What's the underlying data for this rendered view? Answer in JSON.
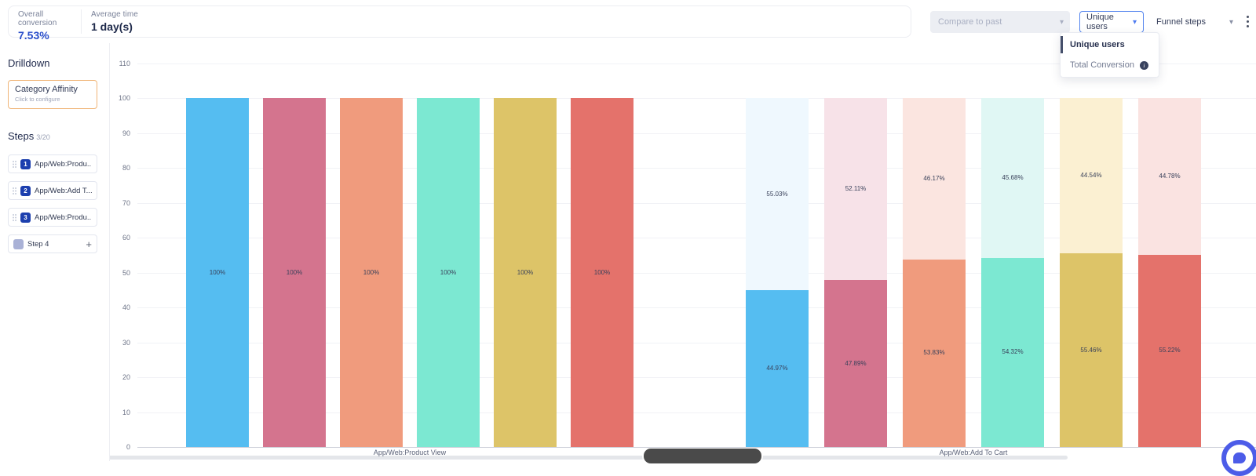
{
  "header": {
    "metrics": [
      {
        "label": "Overall conversion",
        "value": "7.53%"
      },
      {
        "label": "Average time",
        "value": "1 day(s)"
      }
    ],
    "compare_select": {
      "label": "Compare to past",
      "disabled": true
    },
    "measure_select": {
      "value": "Unique users"
    },
    "funnel_select": {
      "value": "Funnel steps"
    },
    "measure_menu": {
      "items": [
        {
          "label": "Unique users",
          "selected": true
        },
        {
          "label": "Total Conversion",
          "selected": false,
          "has_info_icon": true
        }
      ]
    },
    "icons": {
      "chevron": "▾",
      "kebab": "more-options-icon",
      "info": "i"
    },
    "accent_color": "#5585EE"
  },
  "sidebar": {
    "drilldown_title": "Drilldown",
    "drilldown_card": {
      "title": "Category Affinity",
      "subtitle": "Click to configure",
      "border_color": "#F0B577"
    },
    "steps_title": "Steps",
    "steps_count": "3/20",
    "steps": [
      {
        "number": "1",
        "label": "App/Web:Produ..."
      },
      {
        "number": "2",
        "label": "App/Web:Add T..."
      },
      {
        "number": "3",
        "label": "App/Web:Produ..."
      }
    ],
    "add_step": {
      "label": "Step 4",
      "plus": "+"
    }
  },
  "chart_data": {
    "type": "bar",
    "stacked": true,
    "grid": true,
    "legend": "none",
    "y_axis": {
      "min": 0,
      "max": 110,
      "tick_step": 10
    },
    "categories": [
      "App/Web:Product View",
      "App/Web:Add To Cart"
    ],
    "series_colors": [
      "#55BDF1",
      "#D4748E",
      "#F09B7D",
      "#7CE8D2",
      "#DDC468",
      "#E4726B"
    ],
    "groups": [
      {
        "category": "App/Web:Product View",
        "bars": [
          {
            "color": "#55BDF1",
            "light": "#EFF8FE",
            "converted": 100,
            "converted_label": "100%",
            "dropped": 0,
            "dropped_label": ""
          },
          {
            "color": "#D4748E",
            "light": "#F7E2E8",
            "converted": 100,
            "converted_label": "100%",
            "dropped": 0,
            "dropped_label": ""
          },
          {
            "color": "#F09B7D",
            "light": "#FBE5E0",
            "converted": 100,
            "converted_label": "100%",
            "dropped": 0,
            "dropped_label": ""
          },
          {
            "color": "#7CE8D2",
            "light": "#E0F7F4",
            "converted": 100,
            "converted_label": "100%",
            "dropped": 0,
            "dropped_label": ""
          },
          {
            "color": "#DDC468",
            "light": "#FBF0D2",
            "converted": 100,
            "converted_label": "100%",
            "dropped": 0,
            "dropped_label": ""
          },
          {
            "color": "#E4726B",
            "light": "#FAE3E1",
            "converted": 100,
            "converted_label": "100%",
            "dropped": 0,
            "dropped_label": ""
          }
        ]
      },
      {
        "category": "App/Web:Add To Cart",
        "bars": [
          {
            "color": "#55BDF1",
            "light": "#EFF8FE",
            "converted": 44.97,
            "converted_label": "44.97%",
            "dropped": 55.03,
            "dropped_label": "55.03%"
          },
          {
            "color": "#D4748E",
            "light": "#F7E2E8",
            "converted": 47.89,
            "converted_label": "47.89%",
            "dropped": 52.11,
            "dropped_label": "52.11%"
          },
          {
            "color": "#F09B7D",
            "light": "#FBE5E0",
            "converted": 53.83,
            "converted_label": "53.83%",
            "dropped": 46.17,
            "dropped_label": "46.17%"
          },
          {
            "color": "#7CE8D2",
            "light": "#E0F7F4",
            "converted": 54.32,
            "converted_label": "54.32%",
            "dropped": 45.68,
            "dropped_label": "45.68%"
          },
          {
            "color": "#DDC468",
            "light": "#FBF0D2",
            "converted": 55.46,
            "converted_label": "55.46%",
            "dropped": 44.54,
            "dropped_label": "44.54%"
          },
          {
            "color": "#E4726B",
            "light": "#FAE3E1",
            "converted": 55.22,
            "converted_label": "55.22%",
            "dropped": 44.78,
            "dropped_label": "44.78%"
          }
        ]
      }
    ]
  }
}
